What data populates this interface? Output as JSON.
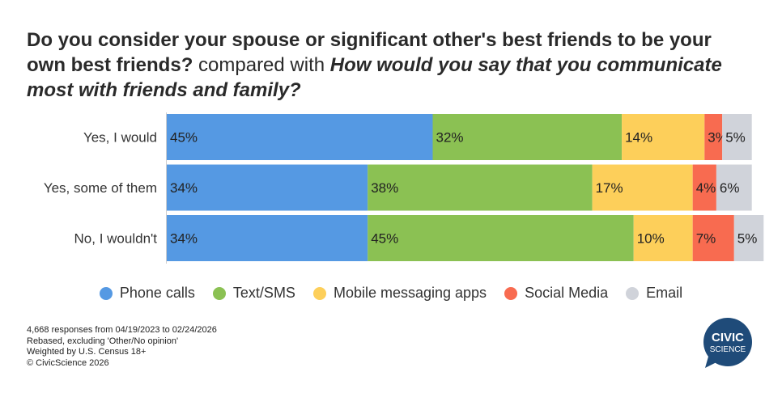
{
  "title": {
    "q1": "Do you consider your spouse or significant other's best friends to be your own best friends?",
    "connector": " compared with ",
    "q2": "How would you say that you communicate most with friends and family?"
  },
  "colors": {
    "Phone calls": "#5599e3",
    "Text/SMS": "#8bc153",
    "Mobile messaging apps": "#fdcf5a",
    "Social Media": "#f86b50",
    "Email": "#d0d3da"
  },
  "legend": [
    "Phone calls",
    "Text/SMS",
    "Mobile messaging apps",
    "Social Media",
    "Email"
  ],
  "chart_data": {
    "type": "bar",
    "orientation": "horizontal",
    "stacked": true,
    "categories": [
      "Yes, I would",
      "Yes, some of them",
      "No, I wouldn't"
    ],
    "series": [
      {
        "name": "Phone calls",
        "values": [
          45,
          34,
          34
        ]
      },
      {
        "name": "Text/SMS",
        "values": [
          32,
          38,
          45
        ]
      },
      {
        "name": "Mobile messaging apps",
        "values": [
          14,
          17,
          10
        ]
      },
      {
        "name": "Social Media",
        "values": [
          3,
          4,
          7
        ]
      },
      {
        "name": "Email",
        "values": [
          5,
          6,
          5
        ]
      }
    ],
    "value_suffix": "%",
    "xlim": [
      0,
      100
    ],
    "legend_position": "bottom"
  },
  "notes": [
    "4,668 responses from 04/19/2023 to 02/24/2026",
    "Rebased, excluding 'Other/No opinion'",
    "Weighted by U.S. Census 18+",
    "© CivicScience 2026"
  ],
  "logo": {
    "line1": "CIVIC",
    "line2": "SCIENCE",
    "color": "#1f4b79"
  }
}
